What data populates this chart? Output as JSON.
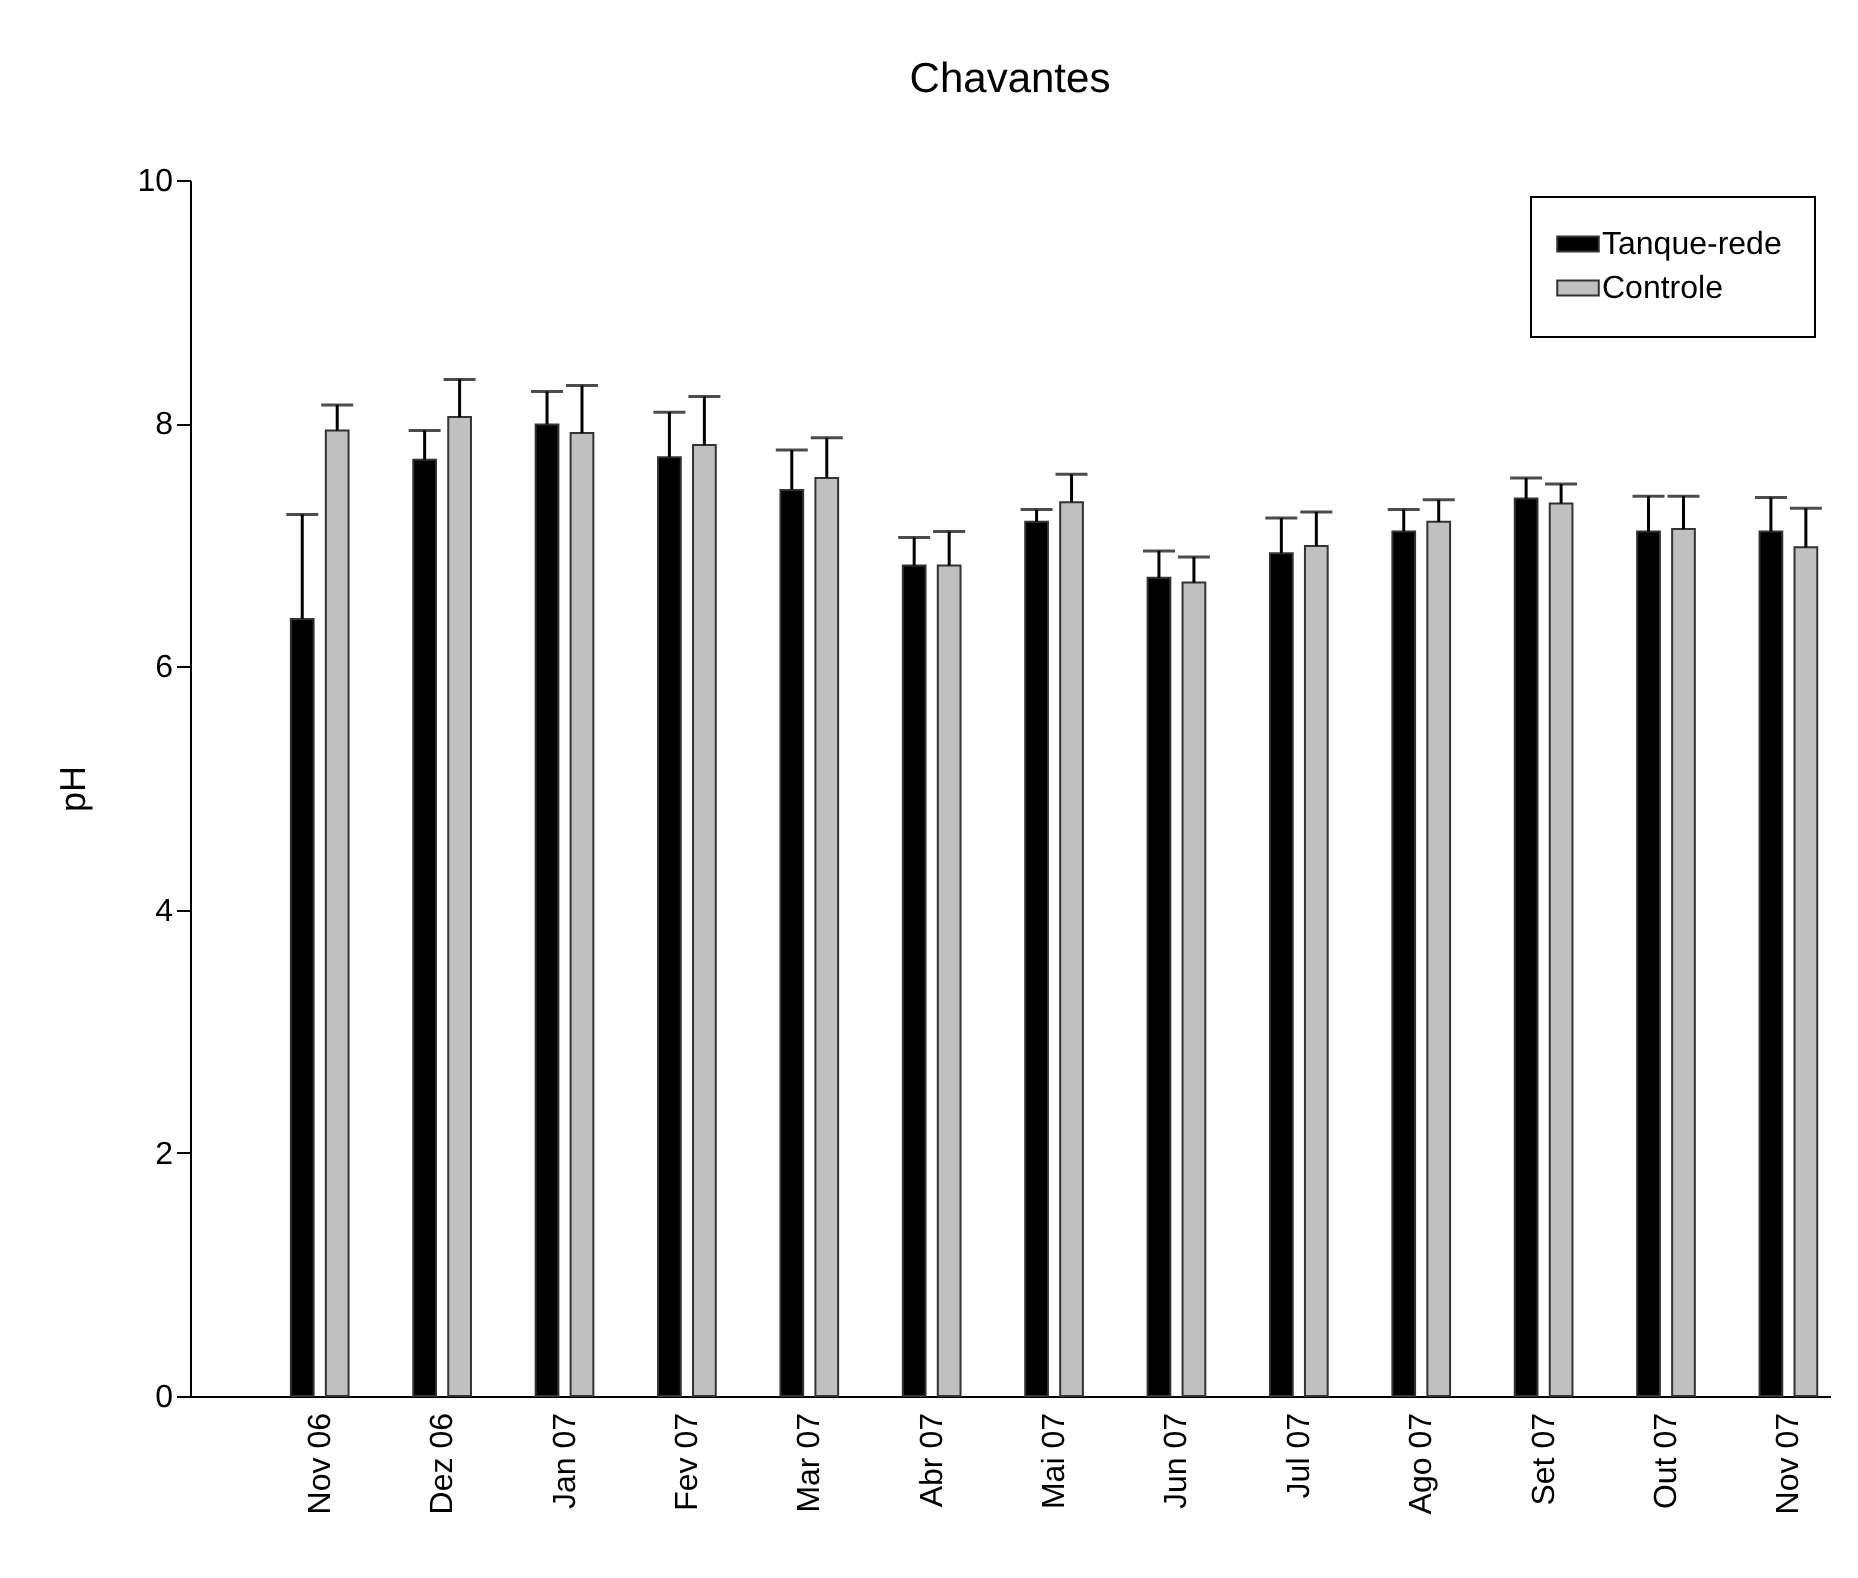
{
  "chart_data": {
    "type": "bar",
    "title": "Chavantes",
    "ylabel": "pH",
    "categories": [
      "Nov 06",
      "Dez 06",
      "Jan 07",
      "Fev 07",
      "Mar 07",
      "Abr 07",
      "Mai 07",
      "Jun 07",
      "Jul 07",
      "Ago 07",
      "Set 07",
      "Out 07",
      "Nov 07"
    ],
    "series": [
      {
        "name": "Tanque-rede",
        "color": "#000000",
        "values": [
          6.39,
          7.7,
          7.99,
          7.72,
          7.45,
          6.83,
          7.19,
          6.73,
          6.93,
          7.11,
          7.38,
          7.11,
          7.11
        ],
        "errors": [
          [
            6.39,
            7.25
          ],
          [
            7.7,
            7.94
          ],
          [
            7.99,
            8.26
          ],
          [
            7.72,
            8.09
          ],
          [
            7.45,
            7.78
          ],
          [
            6.83,
            7.06
          ],
          [
            7.19,
            7.29
          ],
          [
            6.73,
            6.95
          ],
          [
            6.93,
            7.22
          ],
          [
            7.11,
            7.29
          ],
          [
            7.38,
            7.55
          ],
          [
            7.11,
            7.4
          ],
          [
            7.11,
            7.39
          ]
        ]
      },
      {
        "name": "Controle",
        "color": "#c0c0c0",
        "values": [
          7.94,
          8.05,
          7.92,
          7.82,
          7.55,
          6.83,
          7.35,
          6.69,
          6.99,
          7.19,
          7.34,
          7.13,
          6.98
        ],
        "errors": [
          [
            7.94,
            8.15
          ],
          [
            8.05,
            8.36
          ],
          [
            7.92,
            8.31
          ],
          [
            7.82,
            8.22
          ],
          [
            7.55,
            7.88
          ],
          [
            6.83,
            7.11
          ],
          [
            7.35,
            7.58
          ],
          [
            6.69,
            6.9
          ],
          [
            6.99,
            7.27
          ],
          [
            7.19,
            7.37
          ],
          [
            7.34,
            7.5
          ],
          [
            7.13,
            7.4
          ],
          [
            6.98,
            7.3
          ]
        ]
      }
    ],
    "ylim": [
      0,
      10
    ],
    "yticks": [
      0,
      2,
      4,
      6,
      8,
      10
    ],
    "grid": false,
    "legend": "top right"
  }
}
